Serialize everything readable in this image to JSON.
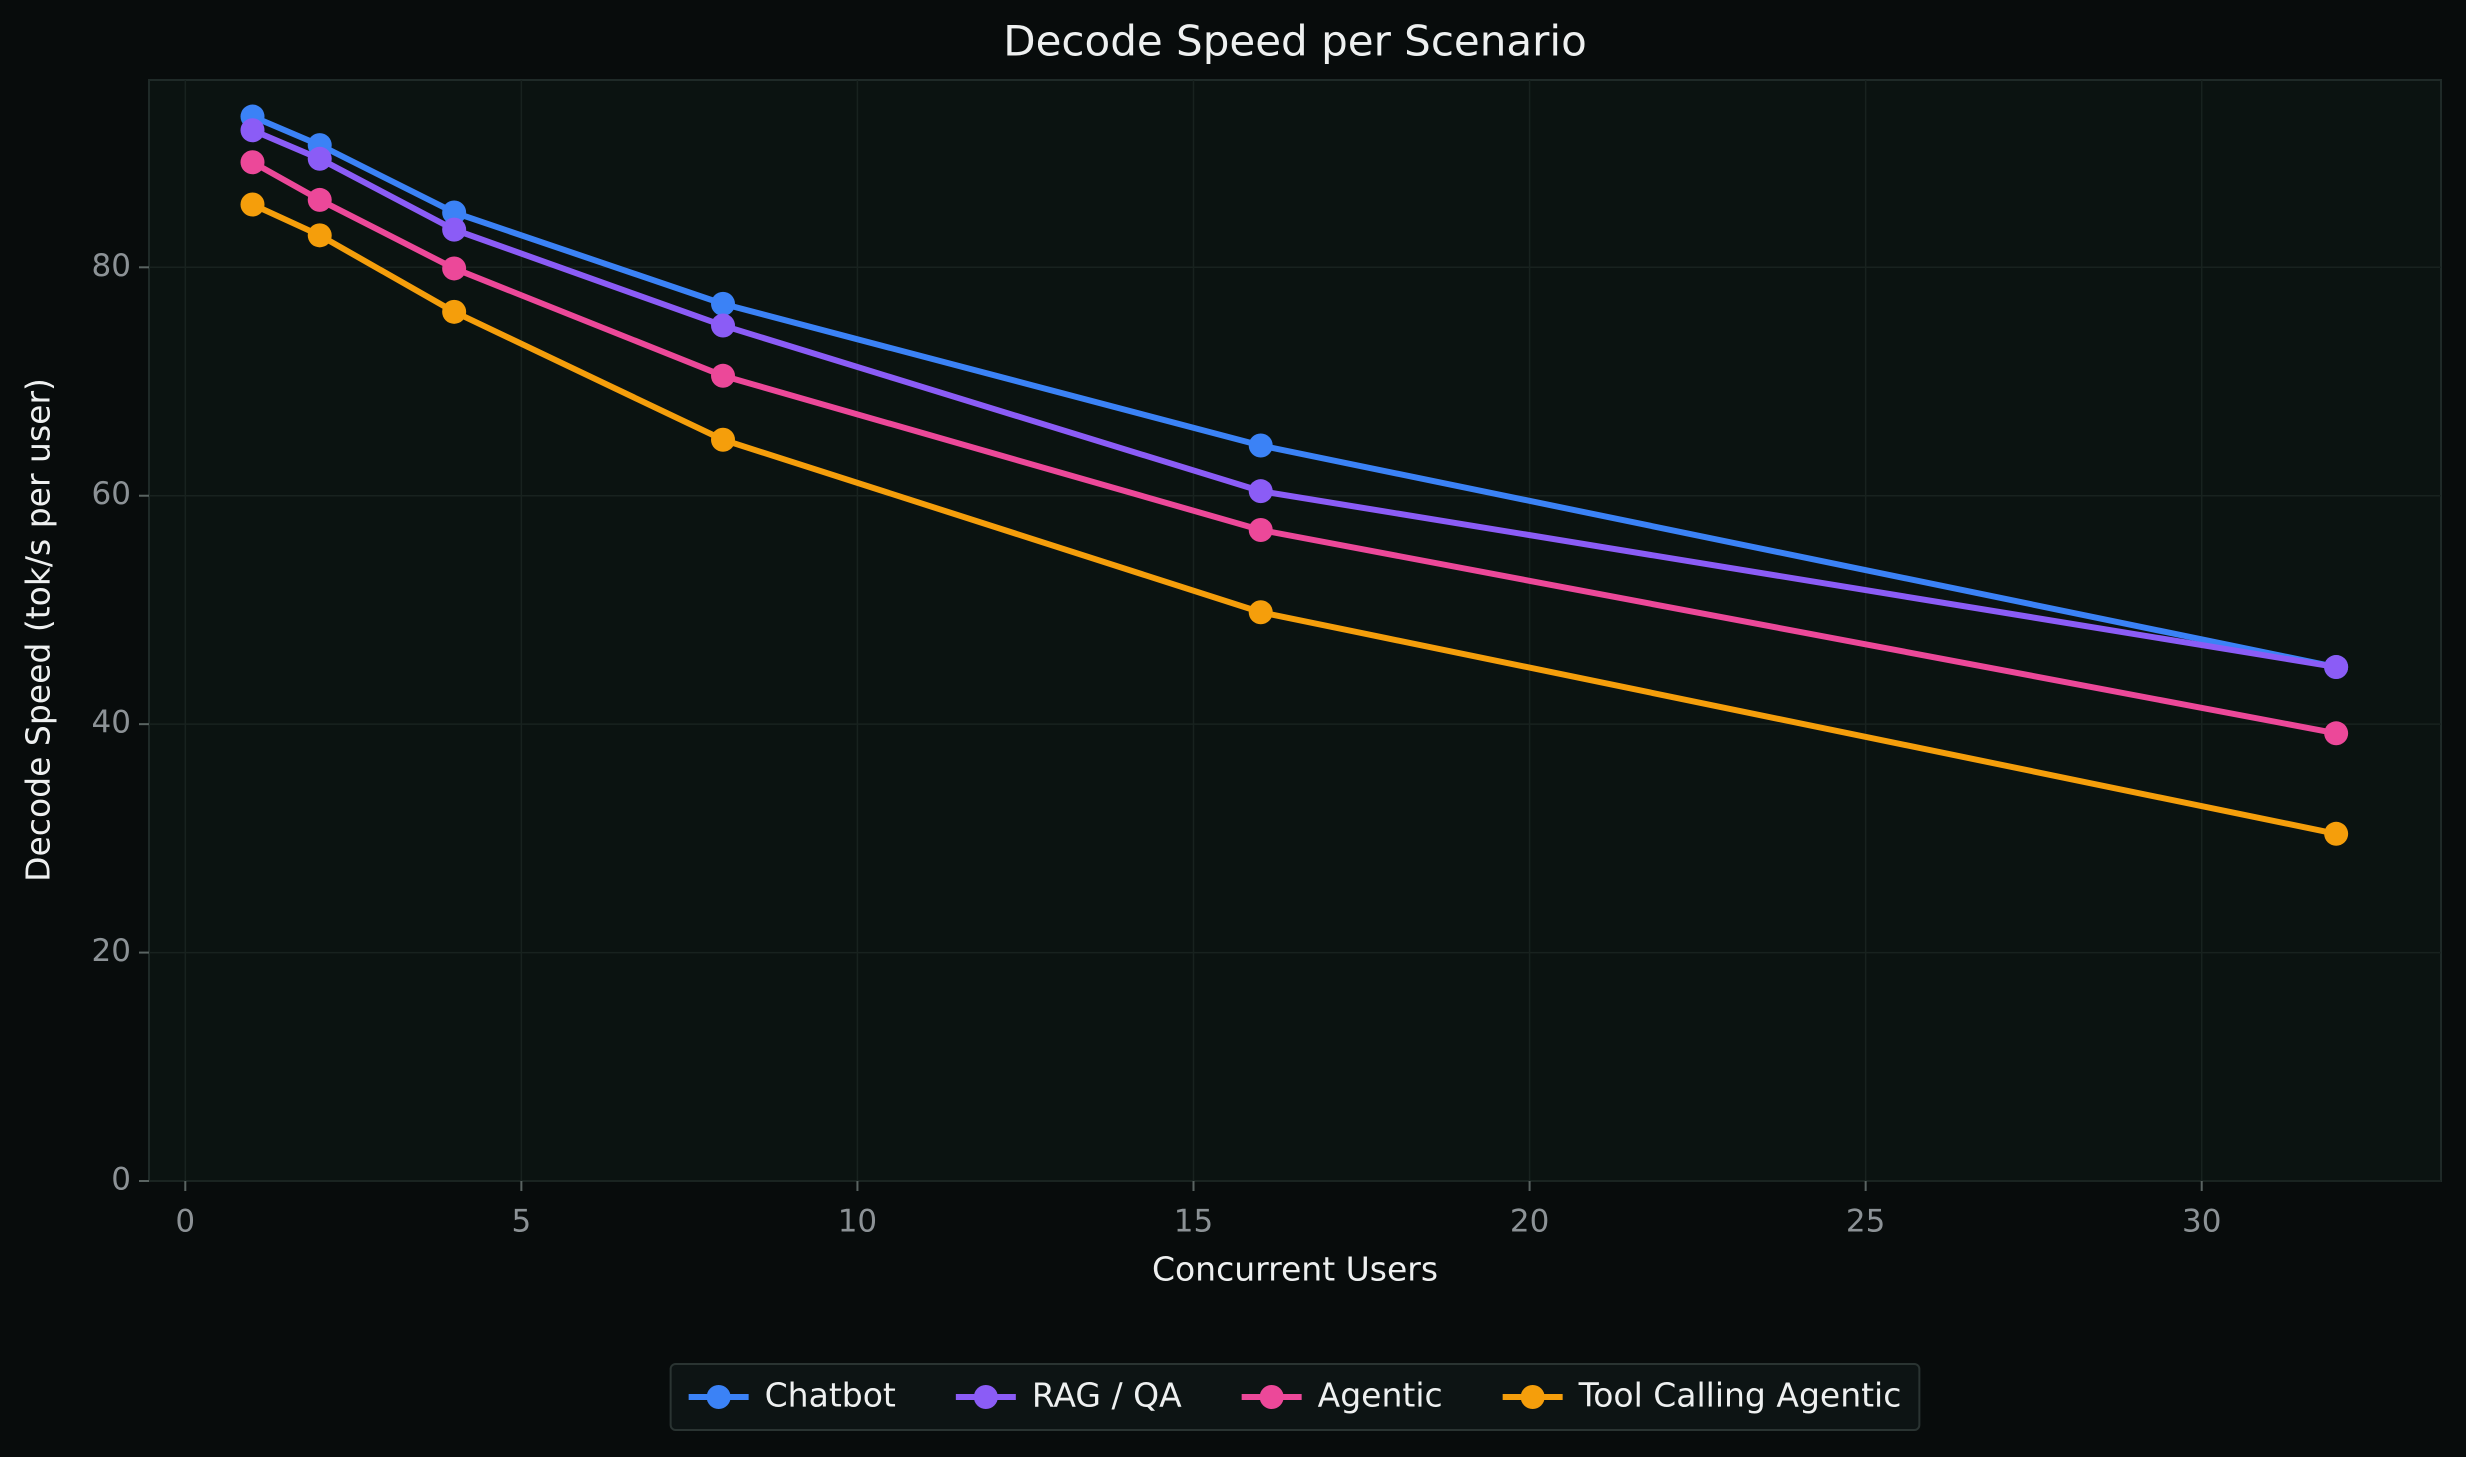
{
  "chart_data": {
    "type": "line",
    "title": "Decode Speed per Scenario",
    "x_label": "Concurrent Users",
    "y_label": "Decode Speed (tok/s per user)",
    "x": [
      1,
      2,
      4,
      8,
      16,
      32
    ],
    "series": [
      {
        "name": "Chatbot",
        "color": "#3b82f6",
        "values": [
          93.2,
          90.7,
          84.8,
          76.8,
          64.4,
          45.0
        ]
      },
      {
        "name": "RAG / QA",
        "color": "#8b5cf6",
        "values": [
          92.0,
          89.5,
          83.3,
          74.9,
          60.4,
          45.0
        ]
      },
      {
        "name": "Agentic",
        "color": "#ec4899",
        "values": [
          89.2,
          85.9,
          79.9,
          70.5,
          57.0,
          39.2
        ]
      },
      {
        "name": "Tool Calling Agentic",
        "color": "#f59e0b",
        "values": [
          85.5,
          82.8,
          76.1,
          64.9,
          49.8,
          30.4
        ]
      }
    ],
    "xlim": [
      -0.54,
      33.56
    ],
    "ylim": [
      0,
      96.4
    ],
    "xticks": [
      0,
      5,
      10,
      15,
      20,
      25,
      30
    ],
    "yticks": [
      0,
      20,
      40,
      60,
      80
    ],
    "grid": true,
    "legend": "bottom"
  }
}
